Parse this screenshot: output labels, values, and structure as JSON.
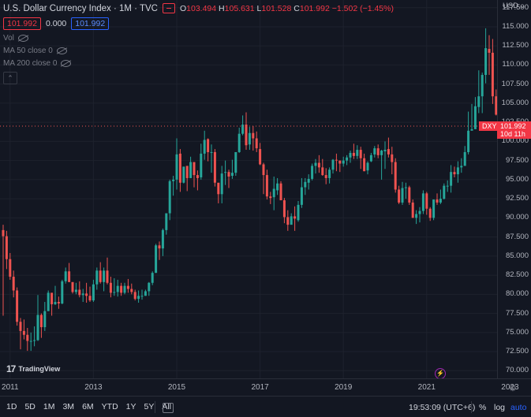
{
  "header": {
    "title": "U.S. Dollar Currency Index · 1M · TVC",
    "ohlc": {
      "o_label": "O",
      "o_value": "103.494",
      "h_label": "H",
      "h_value": "105.631",
      "l_label": "L",
      "l_value": "101.528",
      "c_label": "C",
      "c_value": "101.992",
      "change": "−1.502 (−1.45%)"
    },
    "sell_price": "101.992",
    "spread": "0.000",
    "buy_price": "101.992"
  },
  "indicators": [
    {
      "label": "Vol"
    },
    {
      "label": "MA 50 close 0"
    },
    {
      "label": "MA 200 close 0"
    }
  ],
  "price_scale": {
    "currency": "USD",
    "labels": [
      "117.500",
      "115.000",
      "112.500",
      "110.000",
      "107.500",
      "105.000",
      "102.500",
      "100.000",
      "97.500",
      "95.000",
      "92.500",
      "90.000",
      "87.500",
      "85.000",
      "82.500",
      "80.000",
      "77.500",
      "75.000",
      "72.500",
      "70.000"
    ],
    "current_price": "101.992",
    "countdown": "10d 11h",
    "symbol_tag": "DXY"
  },
  "time_scale": {
    "labels": [
      "2011",
      "2013",
      "2015",
      "2017",
      "2019",
      "2021",
      "2023"
    ]
  },
  "branding": {
    "logo_text": "TradingView"
  },
  "bottom_bar": {
    "ranges": [
      "1D",
      "5D",
      "1M",
      "3M",
      "6M",
      "YTD",
      "1Y",
      "5Y",
      "All"
    ],
    "clock": "19:53:09 (UTC+6)",
    "percent": "%",
    "log": "log",
    "auto": "auto"
  },
  "colors": {
    "up": "#26a69a",
    "down": "#ef5350",
    "background": "#131722",
    "grid": "#1e222d",
    "accent": "#2962ff"
  },
  "chart_data": {
    "type": "candlestick",
    "interval": "1M",
    "x_start": "2010-11",
    "x_range": [
      "2010-11",
      "2023-01"
    ],
    "y_range": [
      69,
      118.5
    ],
    "candles": [
      [
        88.4,
        87.6,
        89.1,
        77.2
      ],
      [
        87.6,
        84.6,
        88.3,
        83.3
      ],
      [
        84.6,
        82.3,
        85.4,
        81.9
      ],
      [
        82.3,
        80.5,
        83.1,
        79.6
      ],
      [
        80.5,
        76.4,
        80.9,
        75.9
      ],
      [
        76.4,
        75.2,
        76.9,
        72.8
      ],
      [
        75.2,
        74.7,
        76.7,
        74.1
      ],
      [
        74.7,
        73.9,
        75.6,
        72.6
      ],
      [
        73.9,
        73.9,
        75.0,
        72.6
      ],
      [
        73.9,
        74.0,
        75.8,
        73.2
      ],
      [
        74.0,
        77.3,
        79.9,
        73.9
      ],
      [
        77.3,
        75.7,
        77.5,
        74.3
      ],
      [
        75.7,
        77.8,
        79.0,
        75.2
      ],
      [
        77.8,
        80.2,
        80.5,
        77.8
      ],
      [
        80.2,
        78.7,
        79.6,
        77.2
      ],
      [
        78.7,
        79.0,
        81.1,
        78.6
      ],
      [
        79.0,
        78.8,
        79.7,
        78.1
      ],
      [
        78.8,
        81.7,
        81.9,
        78.7
      ],
      [
        81.7,
        83.0,
        83.5,
        81.4
      ],
      [
        83.0,
        81.6,
        84.1,
        81.6
      ],
      [
        81.6,
        80.3,
        81.6,
        80.1
      ],
      [
        80.3,
        80.6,
        81.5,
        80.0
      ],
      [
        80.6,
        79.9,
        81.7,
        79.6
      ],
      [
        79.9,
        80.1,
        80.7,
        79.0
      ],
      [
        80.1,
        79.8,
        81.5,
        78.9
      ],
      [
        79.8,
        79.2,
        81.0,
        79.0
      ],
      [
        79.2,
        81.3,
        81.9,
        79.0
      ],
      [
        81.3,
        83.1,
        83.5,
        80.6
      ],
      [
        83.1,
        81.6,
        84.2,
        81.4
      ],
      [
        81.6,
        83.1,
        83.5,
        80.4
      ],
      [
        83.1,
        81.5,
        84.8,
        81.3
      ],
      [
        81.5,
        80.2,
        82.3,
        79.6
      ],
      [
        80.2,
        80.3,
        82.1,
        79.8
      ],
      [
        80.3,
        81.1,
        81.9,
        79.7
      ],
      [
        81.1,
        80.2,
        81.5,
        79.8
      ],
      [
        80.2,
        81.1,
        81.5,
        80.0
      ],
      [
        81.1,
        80.7,
        82.0,
        80.2
      ],
      [
        80.7,
        80.3,
        81.4,
        80.0
      ],
      [
        80.3,
        79.4,
        80.6,
        79.2
      ],
      [
        79.4,
        79.8,
        80.5,
        78.9
      ],
      [
        79.8,
        79.8,
        80.6,
        79.3
      ],
      [
        79.8,
        80.4,
        80.6,
        79.8
      ],
      [
        80.4,
        81.5,
        81.6,
        79.8
      ],
      [
        81.5,
        82.8,
        83.0,
        81.2
      ],
      [
        82.8,
        86.4,
        86.6,
        82.8
      ],
      [
        86.4,
        86.0,
        86.9,
        84.5
      ],
      [
        86.0,
        88.4,
        88.6,
        85.0
      ],
      [
        88.4,
        90.6,
        90.6,
        87.8
      ],
      [
        90.6,
        94.8,
        95.0,
        89.7
      ],
      [
        94.8,
        95.0,
        95.5,
        92.9
      ],
      [
        95.0,
        98.3,
        100.4,
        93.7
      ],
      [
        98.4,
        94.6,
        99.0,
        93.4
      ],
      [
        94.6,
        96.7,
        96.7,
        94.5
      ],
      [
        96.8,
        95.2,
        96.1,
        93.5
      ],
      [
        95.2,
        97.3,
        98.0,
        95.2
      ],
      [
        97.3,
        95.6,
        97.1,
        94.0
      ],
      [
        95.6,
        95.2,
        96.2,
        93.6
      ],
      [
        95.3,
        98.4,
        99.7,
        95.0
      ],
      [
        98.4,
        100.2,
        101.4,
        97.6
      ],
      [
        100.3,
        98.6,
        100.4,
        97.4
      ],
      [
        98.6,
        98.6,
        99.6,
        95.9
      ],
      [
        98.6,
        94.6,
        99.0,
        94.1
      ],
      [
        94.6,
        93.1,
        93.8,
        91.9
      ],
      [
        93.1,
        95.8,
        96.8,
        91.9
      ],
      [
        95.9,
        96.0,
        97.5,
        94.3
      ],
      [
        96.0,
        95.4,
        96.3,
        93.9
      ],
      [
        95.5,
        95.9,
        97.6,
        95.1
      ],
      [
        95.9,
        98.6,
        98.6,
        95.5
      ],
      [
        98.6,
        101.0,
        101.8,
        98.5
      ],
      [
        101.0,
        102.2,
        103.4,
        100.8
      ],
      [
        102.2,
        99.5,
        103.8,
        98.9
      ],
      [
        99.6,
        101.1,
        101.9,
        98.9
      ],
      [
        101.1,
        100.4,
        102.0,
        98.8
      ],
      [
        100.4,
        99.1,
        101.3,
        98.6
      ],
      [
        99.0,
        97.0,
        99.8,
        96.9
      ],
      [
        97.0,
        95.6,
        97.2,
        93.1
      ],
      [
        95.6,
        92.8,
        96.3,
        92.4
      ],
      [
        92.8,
        92.6,
        93.4,
        91.8
      ],
      [
        92.7,
        93.8,
        95.4,
        91.0
      ],
      [
        93.6,
        94.5,
        95.2,
        93.0
      ],
      [
        94.5,
        92.3,
        94.8,
        92.3
      ],
      [
        92.3,
        90.1,
        92.6,
        89.3
      ],
      [
        90.1,
        89.1,
        91.0,
        88.3
      ],
      [
        89.1,
        90.2,
        90.6,
        89.1
      ],
      [
        90.2,
        89.9,
        91.5,
        88.3
      ],
      [
        89.7,
        91.7,
        92.2,
        89.5
      ],
      [
        91.7,
        94.0,
        95.2,
        91.3
      ],
      [
        94.0,
        94.7,
        95.2,
        93.0
      ],
      [
        94.6,
        95.1,
        95.7,
        93.7
      ],
      [
        95.1,
        96.8,
        97.1,
        94.9
      ],
      [
        96.8,
        97.2,
        97.7,
        95.8
      ],
      [
        97.2,
        96.6,
        98.2,
        95.9
      ],
      [
        96.6,
        95.6,
        97.7,
        95.5
      ],
      [
        95.6,
        95.2,
        96.5,
        94.4
      ],
      [
        95.2,
        96.3,
        96.6,
        94.5
      ],
      [
        96.3,
        97.6,
        97.7,
        95.8
      ],
      [
        97.6,
        97.5,
        98.4,
        96.1
      ],
      [
        97.5,
        97.1,
        97.5,
        96.0
      ],
      [
        97.1,
        97.5,
        98.0,
        96.7
      ],
      [
        97.5,
        97.9,
        98.2,
        96.9
      ],
      [
        97.9,
        98.5,
        98.8,
        97.2
      ],
      [
        98.5,
        98.1,
        99.7,
        97.7
      ],
      [
        98.1,
        98.9,
        99.5,
        97.7
      ],
      [
        98.9,
        97.8,
        99.3,
        96.4
      ],
      [
        97.8,
        96.1,
        98.4,
        96.1
      ],
      [
        96.2,
        97.2,
        97.4,
        95.7
      ],
      [
        97.4,
        98.2,
        98.5,
        97.3
      ],
      [
        98.3,
        99.1,
        99.4,
        97.9
      ],
      [
        99.1,
        98.2,
        99.6,
        97.8
      ],
      [
        98.2,
        98.8,
        98.9,
        95.0
      ],
      [
        98.7,
        98.9,
        100.0,
        96.4
      ],
      [
        99.0,
        98.3,
        100.5,
        97.9
      ],
      [
        98.3,
        97.3,
        99.3,
        95.7
      ],
      [
        97.3,
        93.7,
        97.8,
        93.3
      ],
      [
        93.7,
        92.0,
        94.2,
        91.8
      ],
      [
        92.0,
        93.9,
        94.7,
        91.7
      ],
      [
        93.9,
        94.0,
        94.6,
        92.5
      ],
      [
        94.0,
        92.0,
        94.2,
        91.7
      ],
      [
        92.0,
        90.0,
        92.4,
        90.0
      ],
      [
        90.0,
        90.5,
        91.0,
        89.2
      ],
      [
        90.5,
        90.9,
        91.4,
        89.4
      ],
      [
        90.9,
        93.2,
        93.6,
        90.5
      ],
      [
        93.2,
        91.2,
        93.4,
        90.4
      ],
      [
        91.2,
        90.0,
        91.4,
        89.6
      ],
      [
        90.0,
        92.4,
        92.4,
        89.7
      ],
      [
        92.4,
        92.0,
        93.2,
        91.7
      ],
      [
        92.0,
        92.5,
        93.7,
        91.8
      ],
      [
        92.5,
        94.2,
        94.5,
        92.4
      ],
      [
        94.2,
        94.2,
        94.9,
        93.4
      ],
      [
        94.2,
        96.0,
        96.9,
        93.3
      ],
      [
        96.0,
        95.7,
        96.7,
        95.3
      ],
      [
        95.7,
        96.6,
        97.4,
        94.6
      ],
      [
        96.6,
        96.8,
        97.8,
        95.9
      ],
      [
        96.8,
        98.6,
        99.4,
        96.8
      ],
      [
        98.6,
        101.4,
        103.9,
        98.3
      ],
      [
        101.4,
        101.6,
        104.9,
        101.5
      ],
      [
        101.6,
        104.6,
        105.8,
        101.6
      ],
      [
        104.5,
        105.9,
        109.3,
        103.7
      ],
      [
        105.9,
        108.7,
        109.0,
        103.7
      ],
      [
        108.7,
        112.2,
        114.8,
        107.6
      ],
      [
        112.1,
        111.6,
        113.9,
        108.7
      ],
      [
        111.6,
        105.9,
        113.4,
        104.9
      ],
      [
        105.9,
        103.5,
        106.8,
        103.4
      ],
      [
        103.5,
        102.0,
        105.6,
        101.5
      ]
    ]
  }
}
